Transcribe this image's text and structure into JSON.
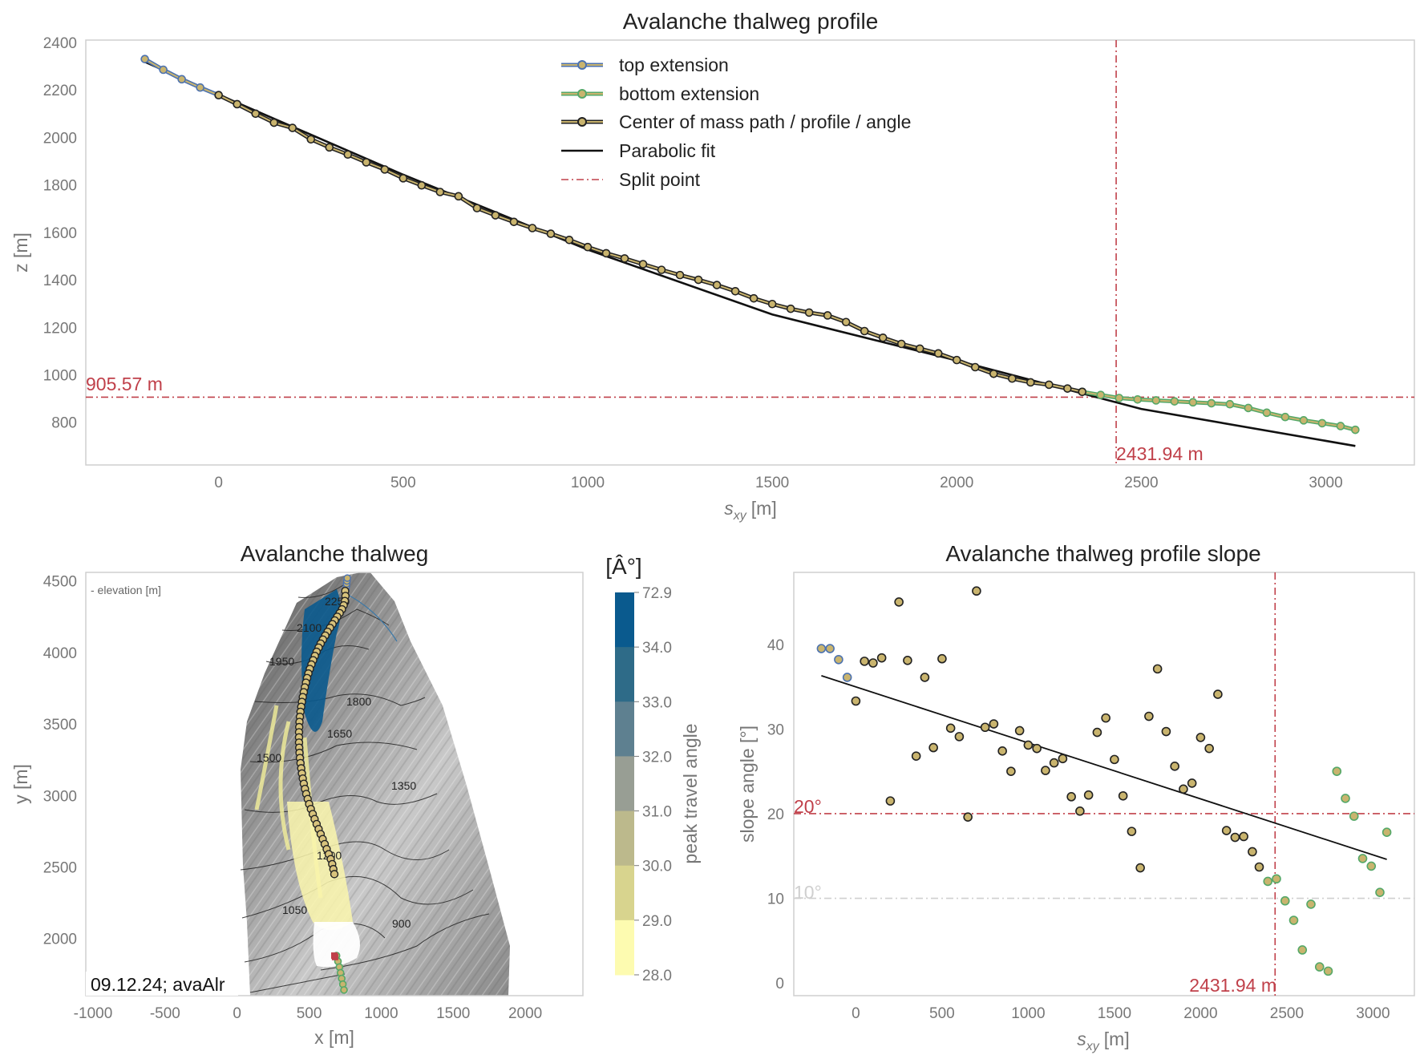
{
  "chart_data": [
    {
      "type": "line",
      "title": "Avalanche thalweg profile",
      "xlabel": "s",
      "xlabel_sub": "xy",
      "xlabel_unit": "[m]",
      "ylabel": "z [m]",
      "xlim": [
        -360,
        3240
      ],
      "ylim": [
        620,
        2410
      ],
      "xticks": [
        0,
        500,
        1000,
        1500,
        2000,
        2500,
        3000
      ],
      "yticks": [
        800,
        1000,
        1200,
        1400,
        1600,
        1800,
        2000,
        2200,
        2400
      ],
      "series": [
        {
          "name": "top extension",
          "color": "#4c72b0",
          "marker": "#c9b46e",
          "x": [
            -200,
            -150,
            -100,
            -50,
            0
          ],
          "y": [
            2330,
            2285,
            2245,
            2210,
            2178
          ]
        },
        {
          "name": "bottom extension",
          "color": "#55a868",
          "marker": "#c9b46e",
          "x": [
            2340,
            2390,
            2440,
            2490,
            2540,
            2590,
            2640,
            2690,
            2740,
            2790,
            2840,
            2890,
            2940,
            2990,
            3040,
            3080
          ],
          "y": [
            928,
            915,
            902,
            896,
            892,
            888,
            884,
            880,
            876,
            860,
            840,
            822,
            808,
            796,
            784,
            768
          ]
        },
        {
          "name": "Center of mass path / profile / angle",
          "color": "#222222",
          "marker": "#c9b46e",
          "x": [
            0,
            50,
            100,
            150,
            200,
            250,
            300,
            350,
            400,
            450,
            500,
            550,
            600,
            650,
            700,
            750,
            800,
            850,
            900,
            950,
            1000,
            1050,
            1100,
            1150,
            1200,
            1250,
            1300,
            1350,
            1400,
            1450,
            1500,
            1550,
            1600,
            1650,
            1700,
            1750,
            1800,
            1850,
            1900,
            1950,
            2000,
            2050,
            2100,
            2150,
            2200,
            2250,
            2300,
            2340
          ],
          "y": [
            2178,
            2140,
            2100,
            2062,
            2040,
            1992,
            1958,
            1928,
            1895,
            1865,
            1828,
            1798,
            1770,
            1752,
            1702,
            1672,
            1644,
            1618,
            1594,
            1568,
            1538,
            1512,
            1490,
            1466,
            1442,
            1420,
            1400,
            1378,
            1352,
            1322,
            1298,
            1278,
            1262,
            1250,
            1222,
            1184,
            1156,
            1130,
            1110,
            1090,
            1062,
            1032,
            1004,
            984,
            968,
            958,
            942,
            928
          ]
        },
        {
          "name": "Parabolic fit",
          "color": "#111111",
          "x": [
            -200,
            0,
            500,
            1000,
            1500,
            2000,
            2500,
            3080
          ],
          "y": [
            2318,
            2180,
            1843,
            1527,
            1254,
            1060,
            856,
            700
          ]
        },
        {
          "name": "Split point",
          "color": "#c0404a"
        }
      ],
      "split_x": 2431.94,
      "split_y": 905.57,
      "split_x_label": "2431.94 m",
      "split_y_label": "905.57 m",
      "legend": "top-center"
    },
    {
      "type": "map",
      "title": "Avalanche thalweg",
      "xlabel": "x [m]",
      "ylabel": "y [m]",
      "xlim": [
        -1050,
        2400
      ],
      "ylim": [
        1600,
        4560
      ],
      "xticks": [
        -1000,
        -500,
        0,
        500,
        1000,
        1500,
        2000
      ],
      "yticks": [
        2000,
        2500,
        3000,
        3500,
        4000,
        4500
      ],
      "corner_note": "- elevation [m]",
      "stamp": "09.12.24; avaAlr",
      "contour_labels": [
        "2250",
        "2100",
        "1950",
        "1800",
        "1650",
        "1500",
        "1350",
        "1200",
        "1050",
        "900"
      ],
      "path_points": {
        "x": [
          750,
          752,
          748,
          740,
          728,
          712,
          695,
          678,
          662,
          645,
          628,
          612,
          596,
          580,
          566,
          552,
          540,
          528,
          516,
          505,
          495,
          486,
          478,
          470,
          463,
          456,
          450,
          445,
          440,
          436,
          433,
          431,
          430,
          430,
          430,
          431,
          433,
          436,
          440,
          445,
          450,
          456,
          463,
          471,
          480,
          490,
          500,
          512,
          525,
          538,
          552,
          566,
          580,
          594,
          608,
          622,
          636,
          650,
          660,
          668,
          675
        ],
        "y": [
          4430,
          4395,
          4360,
          4330,
          4302,
          4275,
          4250,
          4224,
          4198,
          4172,
          4145,
          4118,
          4090,
          4062,
          4034,
          4005,
          3976,
          3946,
          3916,
          3885,
          3853,
          3821,
          3789,
          3756,
          3722,
          3688,
          3654,
          3620,
          3585,
          3550,
          3514,
          3478,
          3442,
          3406,
          3370,
          3334,
          3298,
          3262,
          3226,
          3190,
          3154,
          3118,
          3082,
          3046,
          3010,
          2975,
          2940,
          2905,
          2870,
          2835,
          2800,
          2765,
          2730,
          2695,
          2660,
          2625,
          2590,
          2555,
          2520,
          2485,
          2450
        ]
      },
      "bottom_points": {
        "x": [
          690,
          700,
          710,
          718,
          726,
          734,
          742
        ],
        "y": [
          1880,
          1840,
          1800,
          1760,
          1720,
          1680,
          1640
        ]
      },
      "top_points": {
        "x": [
          755,
          758,
          760,
          762,
          765
        ],
        "y": [
          4440,
          4460,
          4480,
          4500,
          4520
        ]
      },
      "end_marker": {
        "x": [
          675,
          680
        ],
        "y": [
          1880,
          1870
        ]
      }
    },
    {
      "type": "colorbar",
      "label": "[Â°]",
      "axis_label": "peak travel angle",
      "ticks": [
        "72.9",
        "34.0",
        "33.0",
        "32.0",
        "31.0",
        "30.0",
        "29.0",
        "28.0"
      ],
      "colors": [
        "#0a5a8e",
        "#2e6b88",
        "#5e8090",
        "#989e94",
        "#bcb98c",
        "#d8d48e",
        "#fdfbb0"
      ]
    },
    {
      "type": "scatter",
      "title": "Avalanche thalweg profile slope",
      "xlabel": "s",
      "xlabel_sub": "xy",
      "xlabel_unit": "[m]",
      "ylabel": "slope angle [°]",
      "xlim": [
        -360,
        3240
      ],
      "ylim": [
        -1.5,
        48.5
      ],
      "xticks": [
        0,
        500,
        1000,
        1500,
        2000,
        2500,
        3000
      ],
      "yticks": [
        0,
        10,
        20,
        30,
        40
      ],
      "series": [
        {
          "name": "top extension",
          "edge": "#4c72b0",
          "x": [
            -200,
            -150,
            -100,
            -50
          ],
          "y": [
            39.5,
            39.5,
            38.2,
            36.1
          ]
        },
        {
          "name": "center",
          "edge": "#222222",
          "x": [
            0,
            50,
            100,
            150,
            200,
            250,
            300,
            350,
            400,
            450,
            500,
            550,
            600,
            650,
            700,
            750,
            800,
            850,
            900,
            950,
            1000,
            1050,
            1100,
            1150,
            1200,
            1250,
            1300,
            1350,
            1400,
            1450,
            1500,
            1550,
            1600,
            1650,
            1700,
            1750,
            1800,
            1850,
            1900,
            1950,
            2000,
            2050,
            2100,
            2150,
            2200,
            2250,
            2300,
            2340
          ],
          "y": [
            33.3,
            38.0,
            37.8,
            38.4,
            21.5,
            45.0,
            38.1,
            26.8,
            36.1,
            27.8,
            38.3,
            30.1,
            29.1,
            19.6,
            46.3,
            30.2,
            30.6,
            27.4,
            25.0,
            29.8,
            28.1,
            27.7,
            25.1,
            26.0,
            26.5,
            22.0,
            20.3,
            22.2,
            29.6,
            31.3,
            26.4,
            22.1,
            17.9,
            13.6,
            31.5,
            37.1,
            29.7,
            25.6,
            22.9,
            23.6,
            29.0,
            27.7,
            34.1,
            18.0,
            17.2,
            17.3,
            15.5,
            13.7
          ]
        },
        {
          "name": "bottom extension",
          "edge": "#55a868",
          "x": [
            2390,
            2440,
            2490,
            2540,
            2590,
            2640,
            2690,
            2740,
            2790,
            2840,
            2890,
            2940,
            2990,
            3040,
            3080
          ],
          "y": [
            12.0,
            12.3,
            9.7,
            7.4,
            3.9,
            9.3,
            1.9,
            1.4,
            25.0,
            21.8,
            19.7,
            14.7,
            13.8,
            10.7,
            17.8
          ]
        }
      ],
      "fit": {
        "x": [
          -200,
          3080
        ],
        "y": [
          36.3,
          14.6
        ]
      },
      "split_x": 2431.94,
      "split_x_label": "2431.94 m",
      "hline_20": 20,
      "hline_20_label": "20°",
      "hline_10": 10,
      "hline_10_label": "10°"
    }
  ]
}
